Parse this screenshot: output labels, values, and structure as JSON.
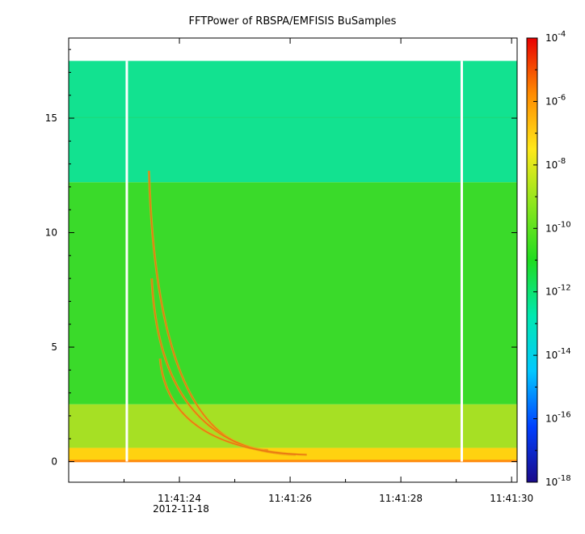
{
  "chart_data": {
    "type": "heatmap",
    "title": "FFTPower of RBSPA/EMFISIS  BuSamples",
    "xlabel": "",
    "ylabel": "",
    "date_label": "2012-11-18",
    "x_unit": "time (UTC)",
    "x_range": [
      "11:41:22.0",
      "11:41:30.1"
    ],
    "x_ticks": [
      "11:41:24",
      "11:41:26",
      "11:41:28",
      "11:41:30"
    ],
    "x_tick_seconds": [
      24,
      26,
      28,
      30
    ],
    "x_minor_tick_seconds": [
      23,
      25,
      27,
      29
    ],
    "ylim": [
      -0.9,
      18.5
    ],
    "y_ticks": [
      0,
      5,
      10,
      15
    ],
    "y_tick_labels": [
      "0",
      "5",
      "10",
      "15"
    ],
    "data_extent_y": [
      0,
      17.5
    ],
    "gap_times_seconds": [
      23.05,
      29.1
    ],
    "colorbar": {
      "scale": "log",
      "range": [
        1e-18,
        0.0001
      ],
      "ticks": [
        {
          "base": "10",
          "exp": "-4",
          "value": 0.0001
        },
        {
          "base": "10",
          "exp": "-6",
          "value": 1e-06
        },
        {
          "base": "10",
          "exp": "-8",
          "value": 1e-08
        },
        {
          "base": "10",
          "exp": "-10",
          "value": 1e-10
        },
        {
          "base": "10",
          "exp": "-12",
          "value": 1e-12
        },
        {
          "base": "10",
          "exp": "-14",
          "value": 1e-14
        },
        {
          "base": "10",
          "exp": "-16",
          "value": 1e-16
        },
        {
          "base": "10",
          "exp": "-18",
          "value": 1e-18
        }
      ],
      "colormap": [
        "#1a0a8a",
        "#0040ff",
        "#00c8ff",
        "#00e8b0",
        "#20dc20",
        "#8ce61e",
        "#ffe81a",
        "#ff8a00",
        "#e80000"
      ]
    },
    "bands": [
      {
        "y_from": 12.2,
        "y_to": 17.5,
        "level": "1e-12",
        "color": "#12e290"
      },
      {
        "y_from": 2.5,
        "y_to": 12.2,
        "level": "1e-10",
        "color": "#3ada2a"
      },
      {
        "y_from": 0.6,
        "y_to": 2.5,
        "level": "1e-9",
        "color": "#a6e024"
      },
      {
        "y_from": 0,
        "y_to": 0.6,
        "level": "1e-8",
        "color": "#ffd210"
      }
    ],
    "whistler_traces": [
      {
        "t0": 23.45,
        "f0": 12.7,
        "t_end": 25.6,
        "f_end": 0.5
      },
      {
        "t0": 23.5,
        "f0": 8.0,
        "t_end": 26.1,
        "f_end": 0.3
      },
      {
        "t0": 23.65,
        "f0": 4.5,
        "t_end": 26.3,
        "f_end": 0.3
      }
    ]
  }
}
